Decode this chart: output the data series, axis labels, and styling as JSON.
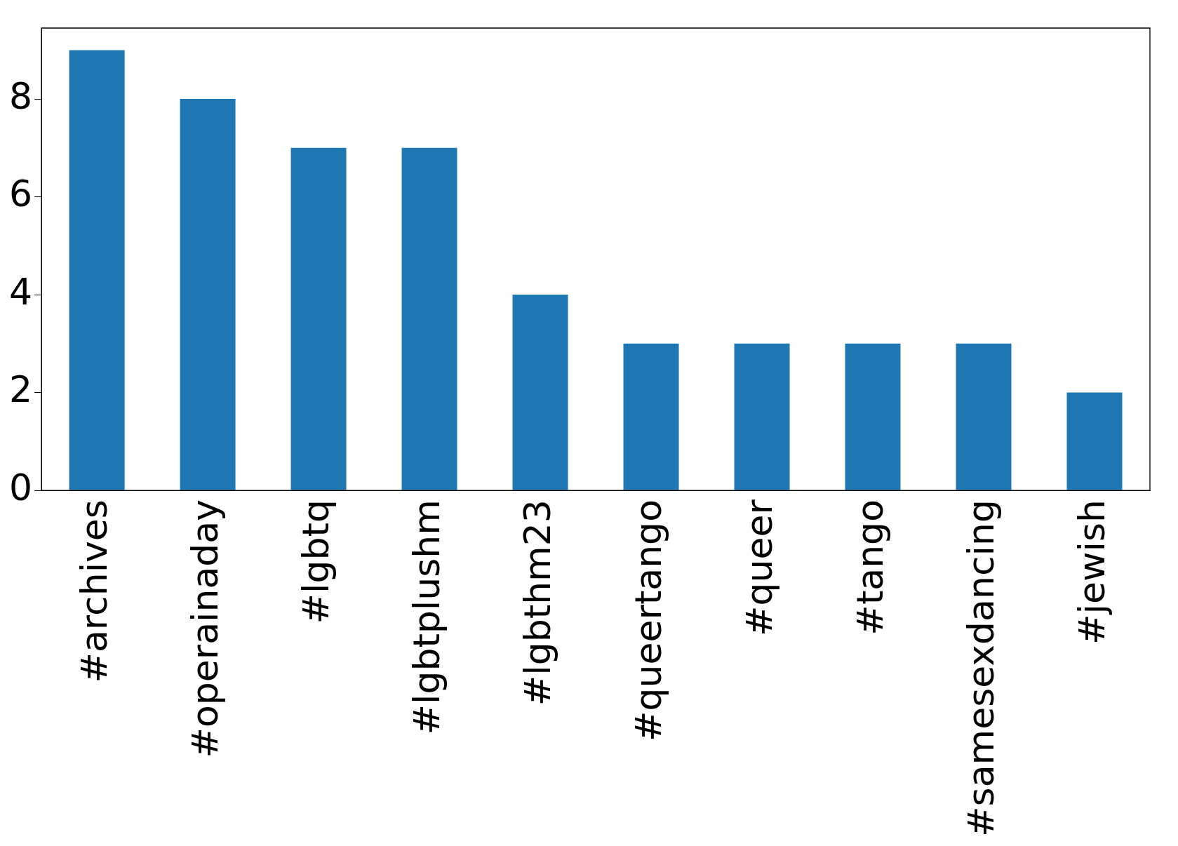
{
  "chart_data": {
    "type": "bar",
    "categories": [
      "#archives",
      "#operainaday",
      "#lgbtq",
      "#lgbtplushm",
      "#lgbthm23",
      "#queertango",
      "#queer",
      "#tango",
      "#samesexdancing",
      "#jewish"
    ],
    "values": [
      9,
      8,
      7,
      7,
      4,
      3,
      3,
      3,
      3,
      2
    ],
    "color": "#1f77b4",
    "ylim": [
      0,
      9.45
    ],
    "yticks": [
      0,
      2,
      4,
      6,
      8
    ],
    "grid": false,
    "legend": false
  }
}
